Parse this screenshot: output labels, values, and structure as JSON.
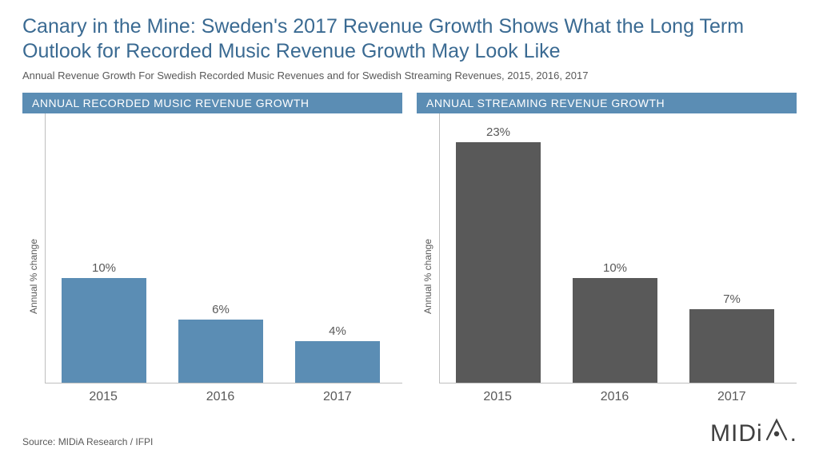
{
  "title": "Canary in the Mine: Sweden's 2017 Revenue Growth Shows What the Long Term Outlook for Recorded Music Revenue Growth May Look Like",
  "subtitle": "Annual Revenue Growth For Swedish Recorded Music Revenues and for Swedish Streaming Revenues, 2015, 2016, 2017",
  "source": "Source: MIDiA Research / IFPI",
  "logo_text": "MIDi",
  "logo_dot": ".",
  "style": {
    "title_color": "#3a6a92",
    "title_fontsize": 25,
    "subtitle_color": "#595959",
    "subtitle_fontsize": 13,
    "header_bg": "#5b8db4",
    "header_text_color": "#ffffff",
    "header_fontsize": 14,
    "axis_color": "#bfbfbf",
    "label_color": "#595959",
    "barlabel_fontsize": 15,
    "xtick_fontsize": 16,
    "ylabel_fontsize": 12,
    "background_color": "#ffffff"
  },
  "charts": [
    {
      "header": "ANNUAL RECORDED MUSIC REVENUE GROWTH",
      "ylabel": "Annual % change",
      "type": "bar",
      "ylim_max": 25,
      "bar_color": "#5b8db4",
      "bars": [
        {
          "category": "2015",
          "value": 10,
          "label": "10%"
        },
        {
          "category": "2016",
          "value": 6,
          "label": "6%"
        },
        {
          "category": "2017",
          "value": 4,
          "label": "4%"
        }
      ]
    },
    {
      "header": "ANNUAL STREAMING REVENUE GROWTH",
      "ylabel": "Annual % change",
      "type": "bar",
      "ylim_max": 25,
      "bar_color": "#595959",
      "bars": [
        {
          "category": "2015",
          "value": 23,
          "label": "23%"
        },
        {
          "category": "2016",
          "value": 10,
          "label": "10%"
        },
        {
          "category": "2017",
          "value": 7,
          "label": "7%"
        }
      ]
    }
  ]
}
